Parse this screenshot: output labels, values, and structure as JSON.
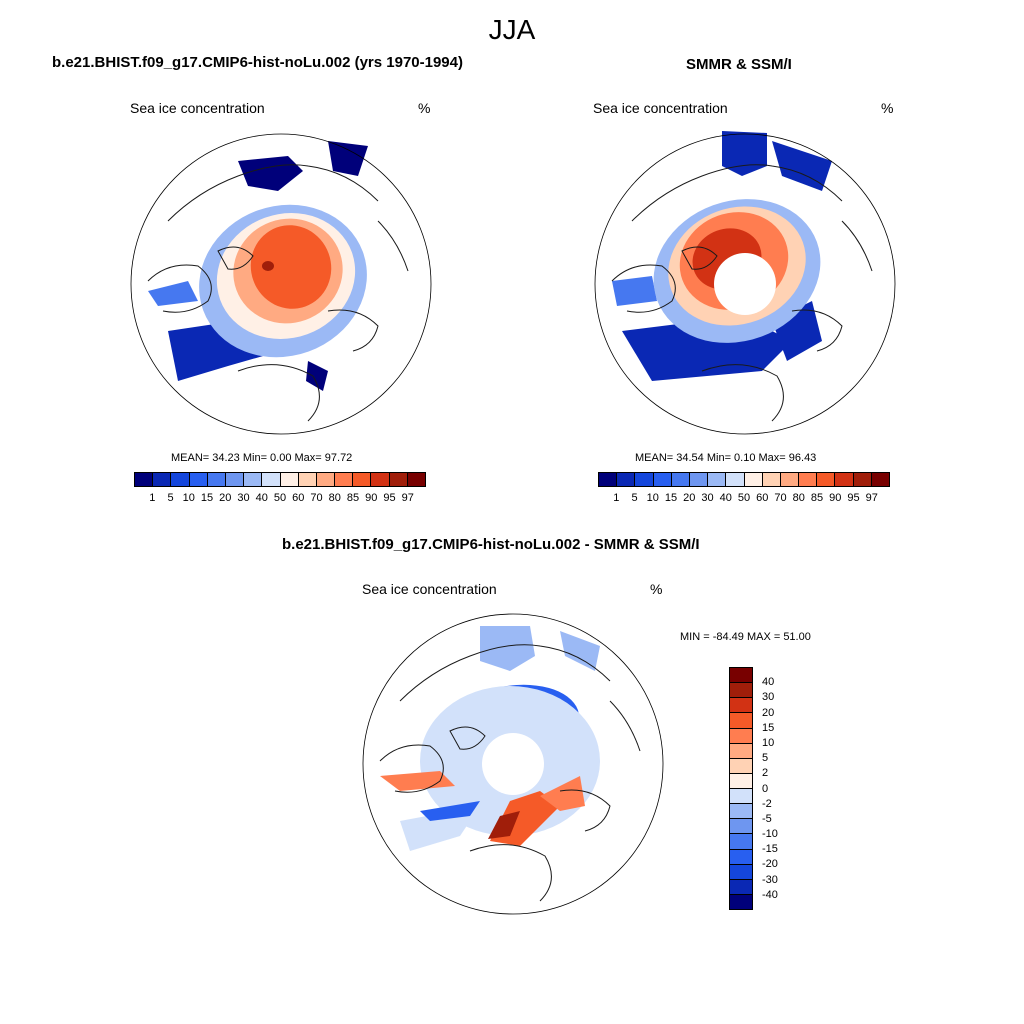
{
  "title": "JJA",
  "colors": {
    "coast": "#1a1a1a",
    "ocean": "#ffffff"
  },
  "chart_data": [
    {
      "type": "heatmap",
      "panel": "model",
      "title": "b.e21.BHIST.f09_g17.CMIP6-hist-noLu.002 (yrs 1970-1994)",
      "variable": "Sea ice concentration",
      "units": "%",
      "projection": "north polar stereographic",
      "stats": "MEAN=  34.23  Min=   0.00  Max=  97.72",
      "mean": 34.23,
      "min": 0.0,
      "max": 97.72,
      "colorbar_levels": [
        "1",
        "5",
        "10",
        "15",
        "20",
        "30",
        "40",
        "50",
        "60",
        "70",
        "80",
        "85",
        "90",
        "95",
        "97"
      ],
      "colorbar_colors": [
        "#00007a",
        "#0a28b4",
        "#1446dc",
        "#285ff0",
        "#4678f0",
        "#6e96f0",
        "#9bb9f5",
        "#d2e1fa",
        "#fff0e6",
        "#ffd2b4",
        "#ffaa82",
        "#ff7d50",
        "#f55a28",
        "#d23214",
        "#a01e0a",
        "#780000"
      ]
    },
    {
      "type": "heatmap",
      "panel": "observations",
      "title": "SMMR & SSM/I",
      "variable": "Sea ice concentration",
      "units": "%",
      "projection": "north polar stereographic",
      "stats": "MEAN=  34.54  Min=   0.10  Max=  96.43",
      "mean": 34.54,
      "min": 0.1,
      "max": 96.43,
      "colorbar_levels": [
        "1",
        "5",
        "10",
        "15",
        "20",
        "30",
        "40",
        "50",
        "60",
        "70",
        "80",
        "85",
        "90",
        "95",
        "97"
      ],
      "colorbar_colors": [
        "#00007a",
        "#0a28b4",
        "#1446dc",
        "#285ff0",
        "#4678f0",
        "#6e96f0",
        "#9bb9f5",
        "#d2e1fa",
        "#fff0e6",
        "#ffd2b4",
        "#ffaa82",
        "#ff7d50",
        "#f55a28",
        "#d23214",
        "#a01e0a",
        "#780000"
      ]
    },
    {
      "type": "heatmap",
      "panel": "difference",
      "title": "b.e21.BHIST.f09_g17.CMIP6-hist-noLu.002 - SMMR & SSM/I",
      "variable": "Sea ice concentration",
      "units": "%",
      "projection": "north polar stereographic",
      "stats": "MIN = -84.49 MAX =  51.00",
      "min": -84.49,
      "max": 51.0,
      "colorbar_levels": [
        "40",
        "30",
        "20",
        "15",
        "10",
        "5",
        "2",
        "0",
        "-2",
        "-5",
        "-10",
        "-15",
        "-20",
        "-30",
        "-40"
      ],
      "colorbar_colors": [
        "#780000",
        "#a01e0a",
        "#d23214",
        "#f55a28",
        "#ff7d50",
        "#ffaa82",
        "#ffd2b4",
        "#fff0e6",
        "#d2e1fa",
        "#9bb9f5",
        "#6e96f0",
        "#4678f0",
        "#285ff0",
        "#1446dc",
        "#0a28b4",
        "#00007a"
      ]
    }
  ]
}
